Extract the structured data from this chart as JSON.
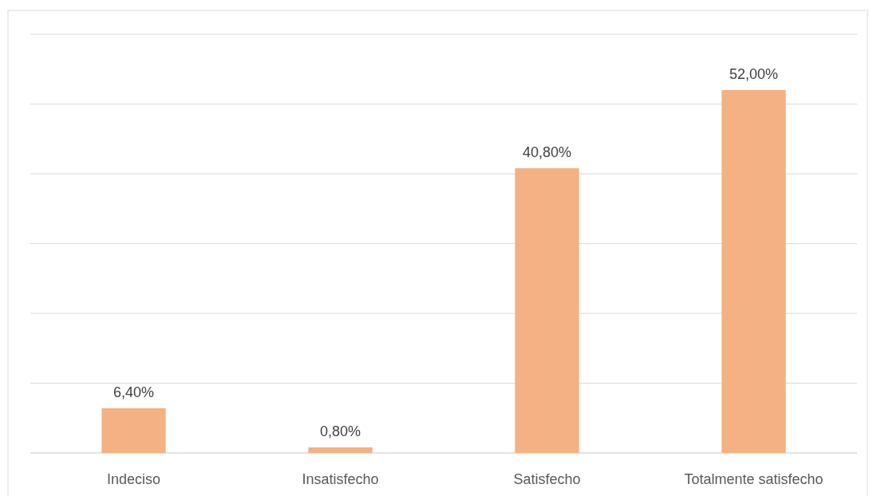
{
  "chart_data": {
    "type": "bar",
    "categories": [
      "Indeciso",
      "Insatisfecho",
      "Satisfecho",
      "Totalmente satisfecho"
    ],
    "values": [
      6.4,
      0.8,
      40.8,
      52
    ],
    "value_labels": [
      "6,40%",
      "0,80%",
      "40,80%",
      "52,00%"
    ],
    "color": "#f4b183",
    "ylim": [
      0,
      60
    ],
    "yticks": [
      {
        "value": 0,
        "label": null
      },
      {
        "value": 10,
        "label": null
      },
      {
        "value": 20,
        "label": null
      },
      {
        "value": 30,
        "label": null
      },
      {
        "value": 40,
        "label": null
      },
      {
        "value": 50,
        "label": null
      },
      {
        "value": 60,
        "label": null
      }
    ],
    "grid": "y",
    "tick_labels": "x"
  }
}
